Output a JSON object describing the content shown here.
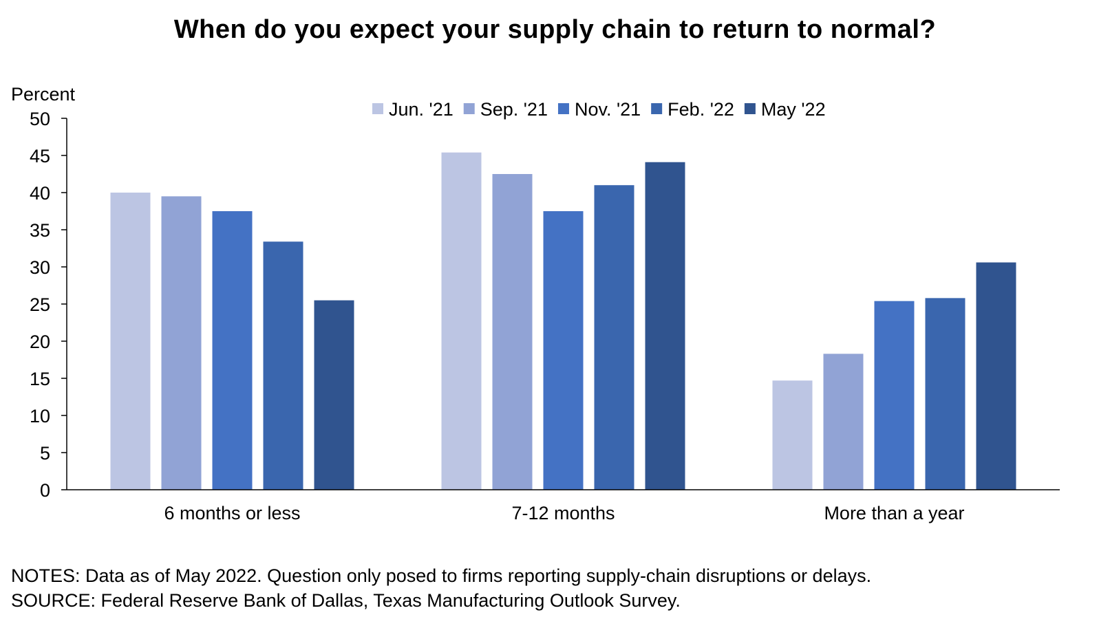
{
  "chart_data": {
    "type": "bar",
    "title": "When do you expect your supply chain to return to normal?",
    "ylabel": "Percent",
    "xlabel": "",
    "ylim": [
      0,
      50
    ],
    "yticks": [
      0,
      5,
      10,
      15,
      20,
      25,
      30,
      35,
      40,
      45,
      50
    ],
    "grid": false,
    "legend_position": "top",
    "categories": [
      "6 months or less",
      "7-12 months",
      "More than a year"
    ],
    "series": [
      {
        "name": "Jun. '21",
        "color": "#bcc5e3",
        "values": [
          40.0,
          45.4,
          14.7
        ]
      },
      {
        "name": "Sep. '21",
        "color": "#91a3d5",
        "values": [
          39.5,
          42.5,
          18.3
        ]
      },
      {
        "name": "Nov. '21",
        "color": "#4472c4",
        "values": [
          37.5,
          37.5,
          25.4
        ]
      },
      {
        "name": "Feb. '22",
        "color": "#3a66ae",
        "values": [
          33.4,
          41.0,
          25.8
        ]
      },
      {
        "name": "May '22",
        "color": "#30548f",
        "values": [
          25.5,
          44.1,
          30.6
        ]
      }
    ]
  },
  "notes": "NOTES: Data as of May 2022. Question only posed to firms reporting supply-chain disruptions or delays.",
  "source": "SOURCE: Federal Reserve Bank of Dallas, Texas Manufacturing Outlook Survey."
}
